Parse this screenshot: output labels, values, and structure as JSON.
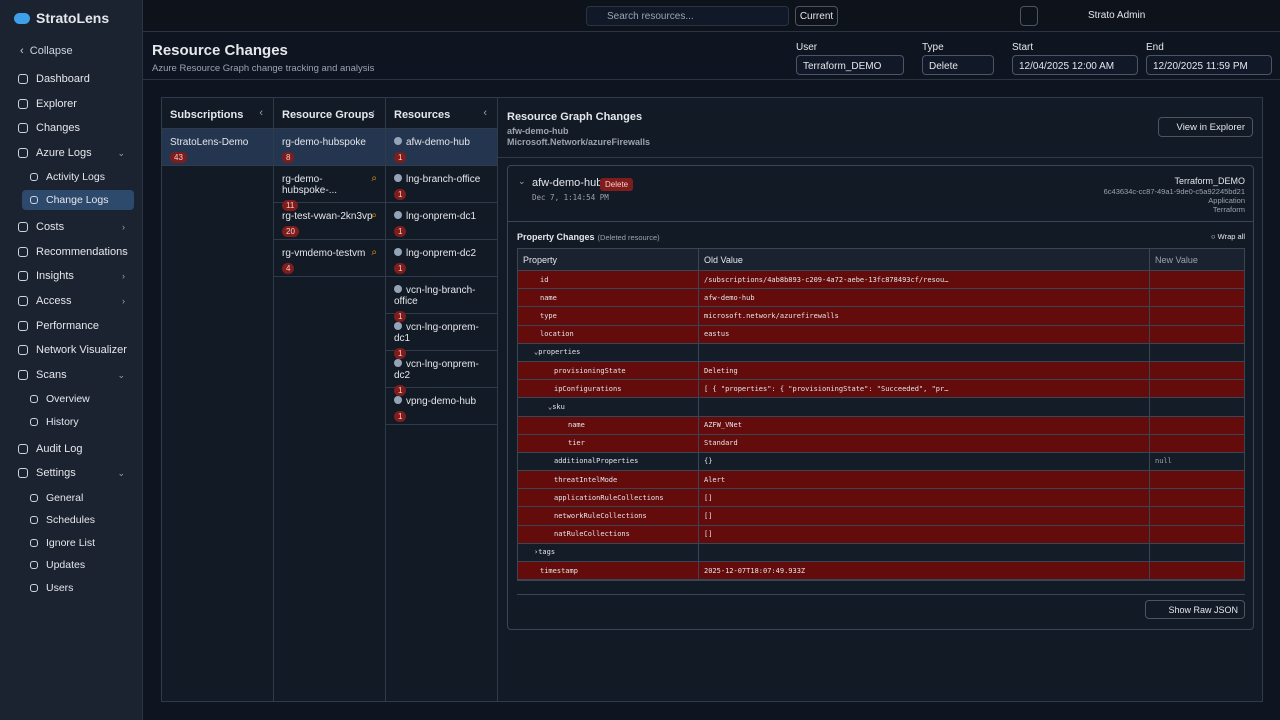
{
  "sidebar": {
    "brand": "StratoLens",
    "collapse": "Collapse",
    "nav": [
      {
        "label": "Dashboard"
      },
      {
        "label": "Explorer"
      },
      {
        "label": "Changes"
      },
      {
        "label": "Azure Logs",
        "expanded": true,
        "children": [
          {
            "label": "Activity Logs"
          },
          {
            "label": "Change Logs",
            "active": true
          }
        ]
      },
      {
        "label": "Costs",
        "expanded": false
      },
      {
        "label": "Recommendations",
        "expanded": false
      },
      {
        "label": "Insights",
        "expanded": false
      },
      {
        "label": "Access",
        "expanded": false
      },
      {
        "label": "Performance"
      },
      {
        "label": "Network Visualizer"
      },
      {
        "label": "Scans",
        "expanded": true,
        "children": [
          {
            "label": "Overview"
          },
          {
            "label": "History"
          }
        ]
      },
      {
        "label": "Audit Log"
      },
      {
        "label": "Settings",
        "expanded": true,
        "children": [
          {
            "label": "General"
          },
          {
            "label": "Schedules"
          },
          {
            "label": "Ignore List"
          },
          {
            "label": "Updates"
          },
          {
            "label": "Users"
          }
        ]
      }
    ]
  },
  "topbar": {
    "search_placeholder": "Search resources...",
    "current": "Current",
    "user": "Strato Admin"
  },
  "header": {
    "title": "Resource Changes",
    "subtitle": "Azure Resource Graph change tracking and analysis",
    "filters": [
      {
        "label": "User",
        "value": "Terraform_DEMO"
      },
      {
        "label": "Type",
        "value": "Delete"
      },
      {
        "label": "Start",
        "value": "12/04/2025 12:00 AM"
      },
      {
        "label": "End",
        "value": "12/20/2025 11:59 PM"
      }
    ]
  },
  "columns": [
    {
      "title": "Subscriptions",
      "items": [
        {
          "name": "StratoLens-Demo",
          "count": 43
        }
      ]
    },
    {
      "title": "Resource Groups",
      "items": [
        {
          "name": "rg-demo-hubspoke",
          "count": 8
        },
        {
          "name": "rg-demo-hubspoke-...",
          "count": 11
        },
        {
          "name": "rg-test-vwan-2kn3vp",
          "count": 20
        },
        {
          "name": "rg-vmdemo-testvm",
          "count": 4
        }
      ]
    },
    {
      "title": "Resources",
      "items": [
        {
          "name": "afw-demo-hub",
          "count": 1
        },
        {
          "name": "lng-branch-office",
          "count": 1
        },
        {
          "name": "lng-onprem-dc1",
          "count": 1
        },
        {
          "name": "lng-onprem-dc2",
          "count": 1
        },
        {
          "name": "vcn-lng-branch-office",
          "count": 1
        },
        {
          "name": "vcn-lng-onprem-dc1",
          "count": 1
        },
        {
          "name": "vcn-lng-onprem-dc2",
          "count": 1
        },
        {
          "name": "vpng-demo-hub",
          "count": 1
        }
      ]
    }
  ],
  "detail": {
    "title": "Resource Graph Changes",
    "resource": "afw-demo-hub",
    "resource_type": "Microsoft.Network/azureFirewalls",
    "view_button": "View in Explorer",
    "change": {
      "name": "afw-demo-hub",
      "badge": "Delete",
      "time": "Dec 7, 1:14:54 PM",
      "actor": "Terraform_DEMO",
      "actor_id": "6c43634c-cc87-49a1-9de0-c5a92245bd21",
      "actor_kind": "Application",
      "actor_source": "Terraform"
    },
    "property_changes": "Property Changes",
    "property_note": "(Deleted resource)",
    "wrap_all": "Wrap all",
    "raw_json": "Show Raw JSON"
  },
  "table": {
    "headers": [
      "Property",
      "Old Value",
      "New Value"
    ],
    "rows": [
      {
        "property": "id",
        "old": "/subscriptions/4ab8b893-c209-4a72-aebe-13fc878493cf/resou…"
      },
      {
        "property": "name",
        "old": "afw-demo-hub"
      },
      {
        "property": "type",
        "old": "microsoft.network/azurefirewalls"
      },
      {
        "property": "location",
        "old": "eastus"
      },
      {
        "property": "properties",
        "expanded": true,
        "children": [
          {
            "property": "provisioningState",
            "old": "Deleting"
          },
          {
            "property": "ipConfigurations",
            "old": "[ { \"properties\": { \"provisioningState\": \"Succeeded\", \"pr…"
          },
          {
            "property": "sku",
            "expanded": true,
            "children": [
              {
                "property": "name",
                "old": "AZFW_VNet"
              },
              {
                "property": "tier",
                "old": "Standard"
              }
            ]
          },
          {
            "property": "additionalProperties",
            "old": "{}",
            "new": "null"
          },
          {
            "property": "threatIntelMode",
            "old": "Alert"
          },
          {
            "property": "applicationRuleCollections",
            "old": "[]"
          },
          {
            "property": "networkRuleCollections",
            "old": "[]"
          },
          {
            "property": "natRuleCollections",
            "old": "[]"
          }
        ]
      },
      {
        "property": "tags",
        "expanded": false
      },
      {
        "property": "timestamp",
        "old": "2025-12-07T18:07:49.933Z"
      }
    ]
  }
}
